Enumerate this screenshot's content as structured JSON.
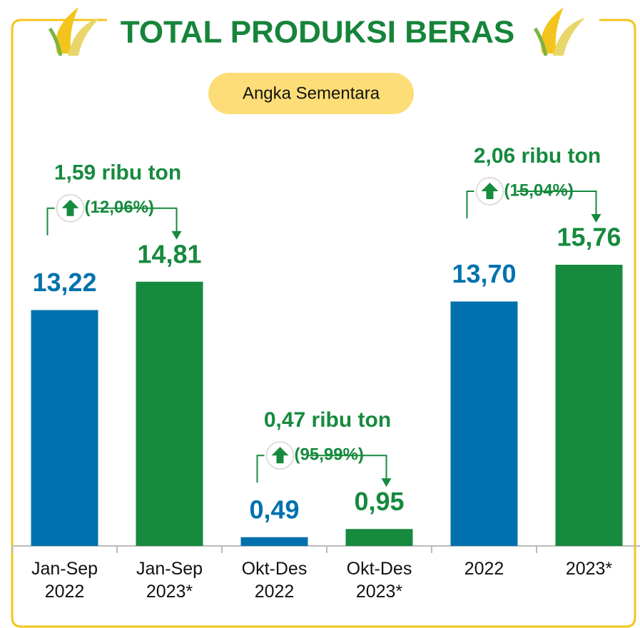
{
  "chart_data": {
    "type": "bar",
    "title": "TOTAL PRODUKSI BERAS",
    "subtitle": "Angka Sementara",
    "categories": [
      "Jan-Sep 2022",
      "Jan-Sep 2023*",
      "Okt-Des 2022",
      "Okt-Des 2023*",
      "2022",
      "2023*"
    ],
    "values": [
      13.22,
      14.81,
      0.49,
      0.95,
      13.7,
      15.76
    ],
    "value_labels": [
      "13,22",
      "14,81",
      "0,49",
      "0,95",
      "13,70",
      "15,76"
    ],
    "colors": [
      "#0071ae",
      "#168a3e",
      "#0071ae",
      "#168a3e",
      "#0071ae",
      "#168a3e"
    ],
    "annotations": [
      {
        "amount": "1,59 ribu ton",
        "percent": "(12,06%)"
      },
      {
        "amount": "0,47 ribu ton",
        "percent": "(95,99%)"
      },
      {
        "amount": "2,06 ribu ton",
        "percent": "(15,04%)"
      }
    ]
  }
}
